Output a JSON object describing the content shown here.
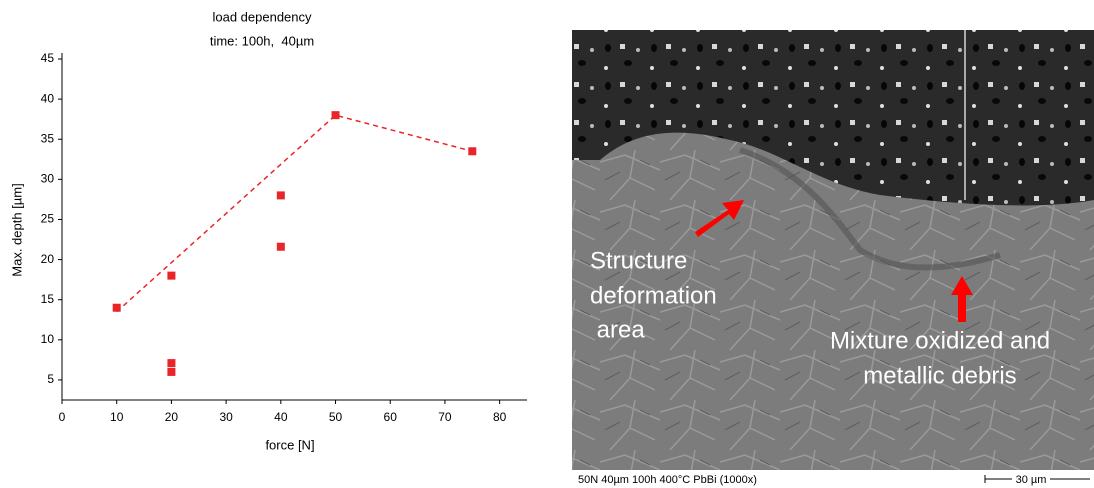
{
  "chart_data": {
    "type": "scatter",
    "title": [
      "load dependency",
      "time: 100h,  40µm"
    ],
    "x_label": "force [N]",
    "y_label": "Max. depth [µm]",
    "series": [
      {
        "color": "#e8262a",
        "marker": "square",
        "x": [
          10,
          20,
          20,
          20,
          40,
          40,
          50,
          75
        ],
        "values": [
          14,
          18,
          7.1,
          6,
          28,
          21.6,
          38,
          33.5
        ]
      },
      {
        "color": "#e8262a",
        "marker": "dashed-line",
        "x": [
          10,
          50,
          75
        ],
        "values": [
          13.5,
          38,
          33.5
        ]
      }
    ],
    "xlim": [
      0,
      85
    ],
    "ylim": [
      2.5,
      45
    ],
    "xticks": [
      0,
      10,
      20,
      30,
      40,
      50,
      60,
      70,
      80
    ],
    "yticks": [
      5,
      10,
      15,
      20,
      25,
      30,
      35,
      40,
      45
    ]
  },
  "image": {
    "labels": [
      {
        "lines": [
          "Structure",
          "deformation",
          " area"
        ]
      },
      {
        "lines": [
          "Mixture oxidized and",
          "metallic debris"
        ]
      }
    ],
    "caption": "50N 40µm 100h 400°C PbBi  (1000x)",
    "scale_bar": "30 µm"
  }
}
